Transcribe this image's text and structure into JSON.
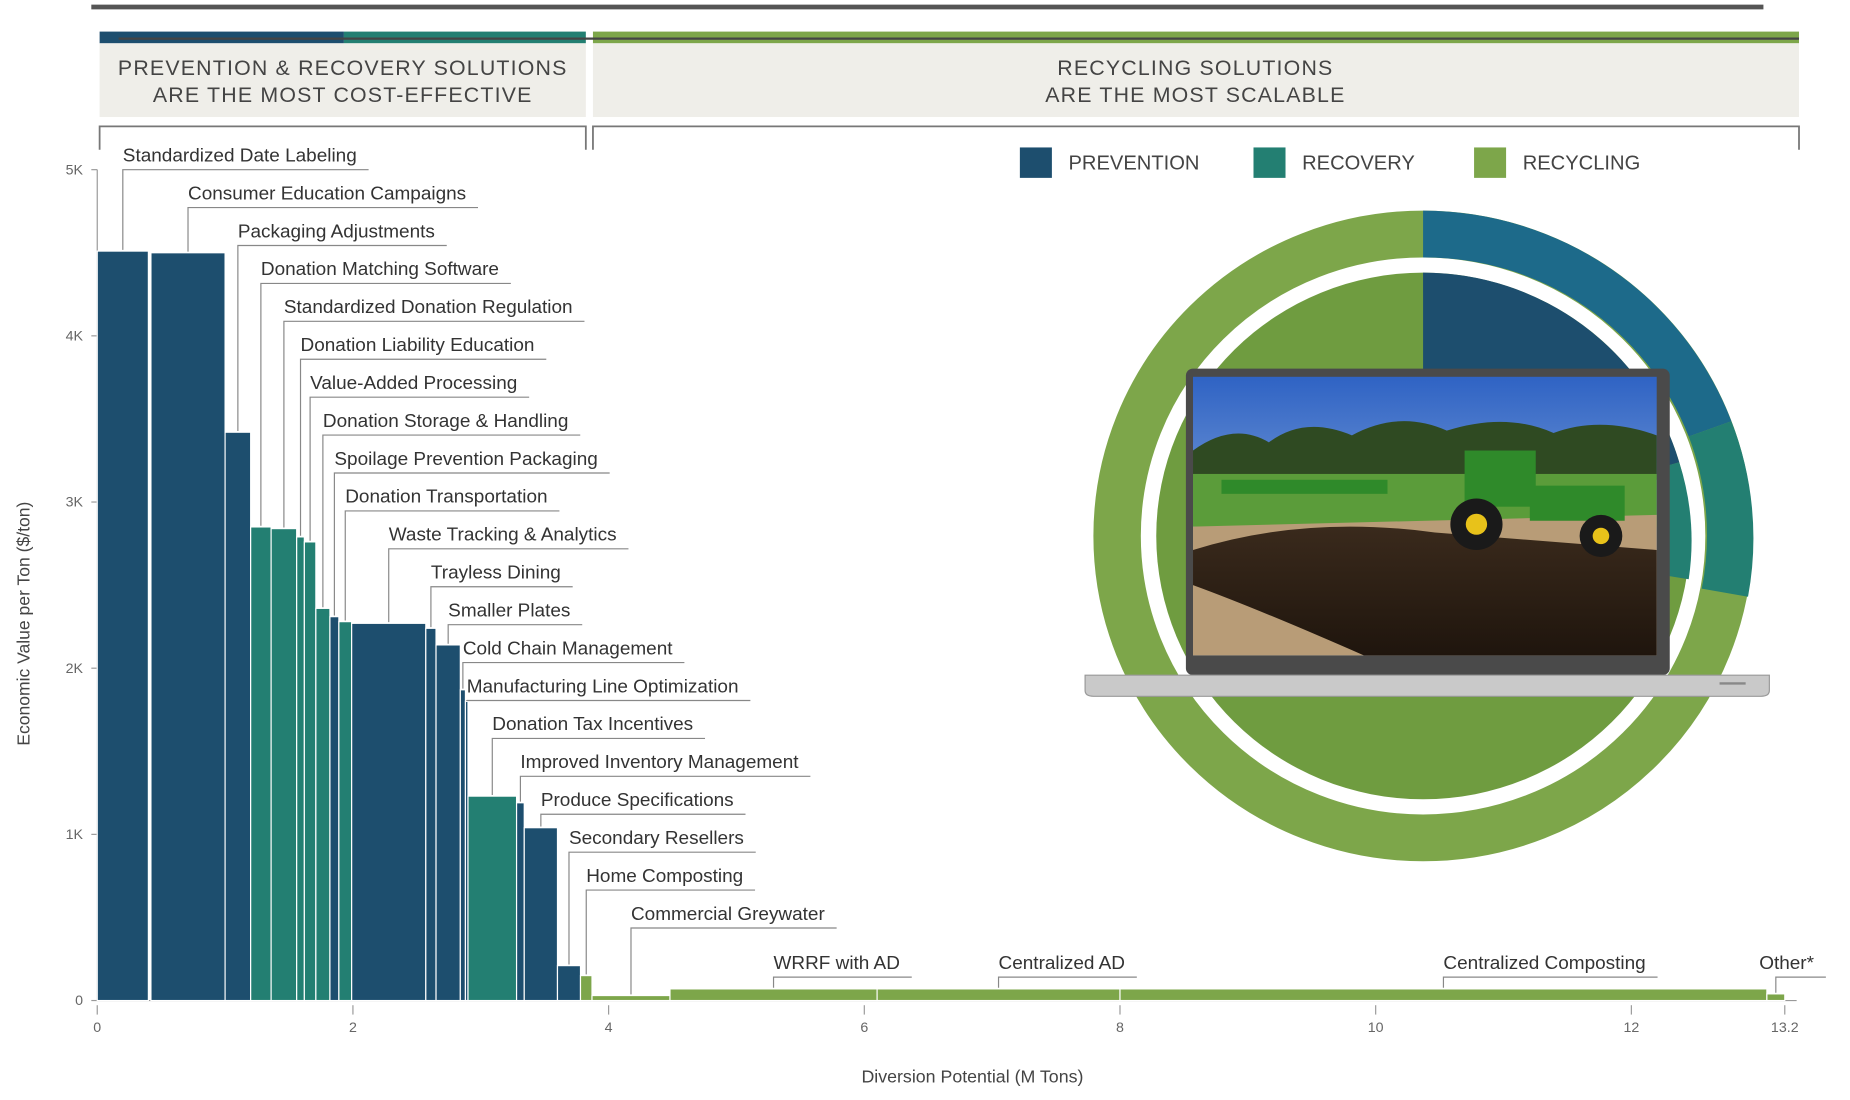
{
  "header": {
    "left": [
      "PREVENTION & RECOVERY SOLUTIONS",
      "ARE THE MOST COST-EFFECTIVE"
    ],
    "right": [
      "RECYCLING SOLUTIONS",
      "ARE THE MOST SCALABLE"
    ]
  },
  "chart_data": {
    "type": "bar",
    "x_label": "Diversion Potential (M Tons)",
    "y_label": "Economic Value per Ton ($/ton)",
    "legend": [
      {
        "name": "PREVENTION",
        "color": "#1d4e6e"
      },
      {
        "name": "RECOVERY",
        "color": "#237f72"
      },
      {
        "name": "RECYCLING",
        "color": "#7da64a"
      }
    ],
    "categories": [
      "Standardized Date Labeling",
      "Consumer Education Campaigns",
      "Packaging Adjustments",
      "Donation Matching Software",
      "Standardized Donation Regulation",
      "Donation Liability Education",
      "Value-Added Processing",
      "Donation Storage & Handling",
      "Spoilage Prevention Packaging",
      "Donation Transportation",
      "Waste Tracking & Analytics",
      "Trayless Dining",
      "Smaller Plates",
      "Cold Chain Management",
      "Manufacturing Line Optimization",
      "Donation Tax Incentives",
      "Improved Inventory Management",
      "Produce Specifications",
      "Secondary Resellers",
      "Home Composting",
      "Commercial Greywater",
      "WRRF with AD",
      "Centralized AD",
      "Centralized Composting",
      "Other*"
    ],
    "groups": [
      "PREVENTION",
      "PREVENTION",
      "PREVENTION",
      "RECOVERY",
      "RECOVERY",
      "RECOVERY",
      "RECOVERY",
      "RECOVERY",
      "PREVENTION",
      "RECOVERY",
      "PREVENTION",
      "PREVENTION",
      "PREVENTION",
      "PREVENTION",
      "PREVENTION",
      "RECOVERY",
      "PREVENTION",
      "PREVENTION",
      "PREVENTION",
      "RECYCLING",
      "RECYCLING",
      "RECYCLING",
      "RECYCLING",
      "RECYCLING",
      "RECYCLING"
    ],
    "x0": [
      0,
      0.42,
      1.0,
      1.2,
      1.36,
      1.56,
      1.62,
      1.71,
      1.82,
      1.89,
      1.99,
      2.57,
      2.65,
      2.84,
      2.88,
      2.9,
      3.28,
      3.34,
      3.6,
      3.78,
      3.87,
      4.48,
      6.1,
      8.0,
      13.06
    ],
    "x1": [
      0.4,
      1.0,
      1.2,
      1.36,
      1.56,
      1.62,
      1.71,
      1.82,
      1.89,
      1.99,
      2.57,
      2.65,
      2.84,
      2.88,
      2.9,
      3.28,
      3.34,
      3.6,
      3.78,
      3.87,
      4.48,
      6.1,
      8.0,
      13.06,
      13.2
    ],
    "values": [
      4510,
      4500,
      3420,
      2850,
      2840,
      2790,
      2760,
      2360,
      2310,
      2280,
      2270,
      2240,
      2140,
      1870,
      1800,
      1230,
      1190,
      1040,
      210,
      150,
      30,
      70,
      70,
      70,
      40
    ],
    "xlim": [
      0,
      13.2
    ],
    "ylim": [
      0,
      5000
    ],
    "xticks": [
      0,
      2,
      4,
      6,
      8,
      10,
      12,
      13.2
    ],
    "yticks": [
      0,
      {
        "value": 1000,
        "label": "1K"
      },
      {
        "value": 2000,
        "label": "2K"
      },
      {
        "value": 3000,
        "label": "3K"
      },
      {
        "value": 4000,
        "label": "4K"
      },
      {
        "value": 5000,
        "label": "5K"
      }
    ]
  }
}
